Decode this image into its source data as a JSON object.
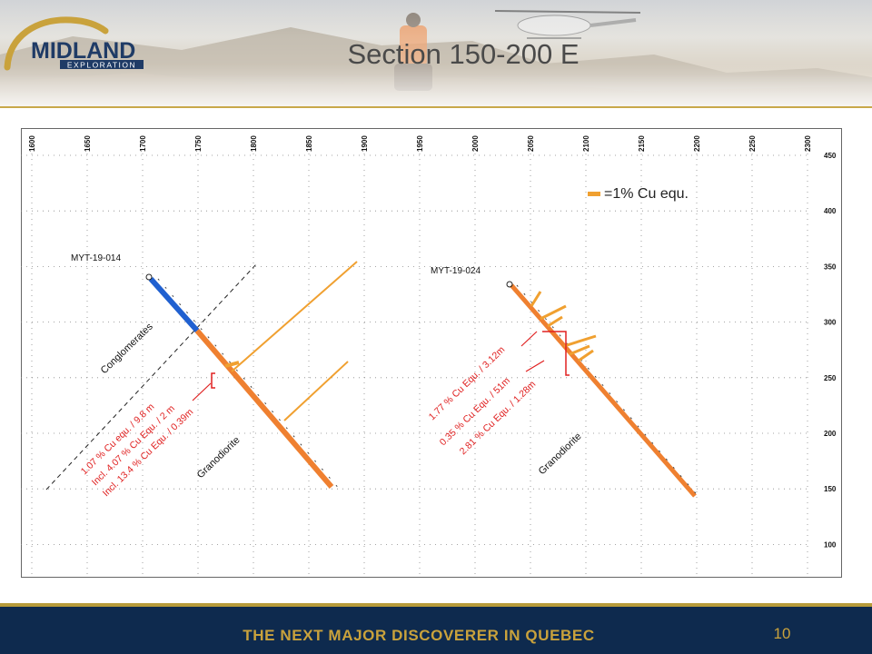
{
  "slide": {
    "title": "Section 150-200 E",
    "footer_tagline": "THE NEXT MAJOR DISCOVERER IN QUEBEC",
    "page_number": "10"
  },
  "logo": {
    "name": "MIDLAND",
    "subtitle": "EXPLORATION",
    "colors": {
      "arc": "#c9a23c",
      "text": "#1f3b66"
    }
  },
  "section": {
    "x_ticks": [
      "1600",
      "1650",
      "1700",
      "1750",
      "1800",
      "1850",
      "1900",
      "1950",
      "2000",
      "2050",
      "2100",
      "2150",
      "2200",
      "2250",
      "2300"
    ],
    "y_ticks": [
      "450",
      "400",
      "350",
      "300",
      "250",
      "200",
      "150",
      "100"
    ],
    "legend_label": "=1% Cu equ.",
    "colors": {
      "grade": "#f0a030",
      "conglomerate": "#2060d0",
      "hole_trace": "#ef8030",
      "annotation": "#e02020",
      "grid": "#888888"
    },
    "holes": [
      {
        "name": "MYT-19-014",
        "annotations": [
          "1.07 % Cu equ. / 9.8 m",
          "Incl. 4.07 % Cu Equ. / 2 m",
          "Incl. 13.4 % Cu Equ. / 0.39m"
        ],
        "unit_labels": [
          "Conglomerates",
          "Granodiorite"
        ]
      },
      {
        "name": "MYT-19-024",
        "annotations": [
          "1.77 % Cu Equ. / 3.12m",
          "0.35 % Cu Equ. / 51m",
          "2.81 % Cu Equ. / 1.28m"
        ],
        "unit_labels": [
          "Granodiorite"
        ]
      }
    ]
  }
}
